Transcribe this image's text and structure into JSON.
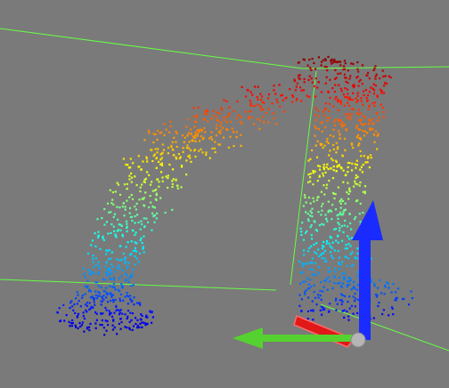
{
  "viewport": {
    "background_color": "#7a7a7a",
    "content": "point-cloud",
    "colormap": "jet (height)",
    "grid_line_color": "#66ff44",
    "point_count_estimate": 1500
  },
  "axes_gizmo": {
    "x_axis_color": "#e01818",
    "y_axis_color": "#55d22f",
    "z_axis_color": "#1a2bff",
    "origin_color": "#b5b5b5"
  }
}
